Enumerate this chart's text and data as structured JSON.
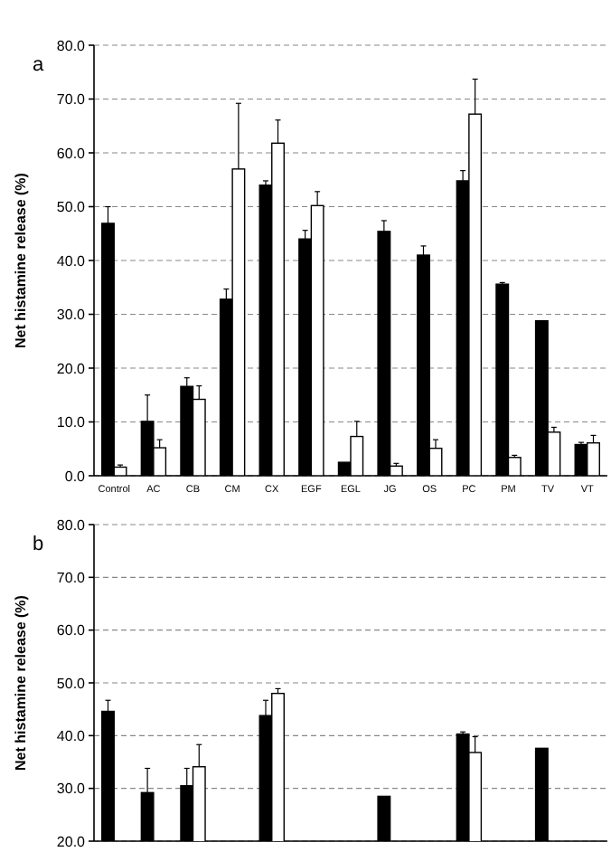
{
  "chart_data": [
    {
      "type": "bar",
      "title": "a",
      "ylabel": "Net histamine release (%)",
      "categories": [
        "Control",
        "AC",
        "CB",
        "CM",
        "CX",
        "EGF",
        "EGL",
        "JG",
        "OS",
        "PC",
        "PM",
        "TV",
        "VT"
      ],
      "series": [
        {
          "color": "#000000",
          "values": [
            46.9,
            10.1,
            16.6,
            32.8,
            54.0,
            44.0,
            2.5,
            45.4,
            41.0,
            54.8,
            35.6,
            28.8,
            5.8
          ],
          "errors": [
            [
              46.9,
              50.0
            ],
            [
              10.1,
              15.0
            ],
            [
              16.6,
              18.2
            ],
            [
              32.8,
              34.7
            ],
            [
              54.0,
              54.8
            ],
            [
              44.0,
              45.6
            ],
            null,
            [
              45.4,
              47.4
            ],
            [
              41.0,
              42.7
            ],
            [
              54.8,
              56.7
            ],
            [
              35.6,
              35.9
            ],
            null,
            [
              5.8,
              6.2
            ]
          ]
        },
        {
          "color": "#ffffff",
          "values": [
            1.6,
            5.2,
            14.2,
            57.0,
            61.8,
            50.2,
            7.3,
            1.8,
            5.1,
            67.2,
            3.4,
            8.1,
            6.1
          ],
          "errors": [
            [
              1.6,
              2.0
            ],
            [
              5.2,
              6.7
            ],
            [
              14.2,
              16.7
            ],
            [
              57.0,
              69.2
            ],
            [
              61.8,
              66.1
            ],
            [
              50.2,
              52.8
            ],
            [
              7.3,
              10.1
            ],
            [
              1.8,
              2.3
            ],
            [
              5.1,
              6.7
            ],
            [
              67.2,
              73.7
            ],
            [
              3.4,
              3.8
            ],
            [
              8.1,
              9.0
            ],
            [
              6.1,
              7.5
            ]
          ]
        }
      ],
      "ylim": [
        0,
        80
      ],
      "yticks": [
        {
          "value": 0,
          "label": "0.0"
        },
        {
          "value": 10,
          "label": "10.0"
        },
        {
          "value": 20,
          "label": "20.0"
        },
        {
          "value": 30,
          "label": "30.0"
        },
        {
          "value": 40,
          "label": "40.0"
        },
        {
          "value": 50,
          "label": "50.0"
        },
        {
          "value": 60,
          "label": "60.0"
        },
        {
          "value": 70,
          "label": "70.0"
        },
        {
          "value": 80,
          "label": "80.0"
        }
      ],
      "grid": "y"
    },
    {
      "type": "bar",
      "title": "b",
      "ylabel": "Net histamine release (%)",
      "categories": [
        null,
        null,
        null,
        null,
        null,
        null,
        null,
        null,
        null,
        null,
        null,
        null,
        null
      ],
      "series": [
        {
          "color": "#000000",
          "values": [
            44.6,
            29.2,
            30.5,
            null,
            43.8,
            null,
            null,
            28.5,
            null,
            40.3,
            null,
            37.6,
            null
          ],
          "errors": [
            [
              44.6,
              46.7
            ],
            [
              29.2,
              33.8
            ],
            [
              30.5,
              33.8
            ],
            null,
            [
              43.8,
              46.7
            ],
            null,
            null,
            null,
            null,
            [
              40.3,
              40.7
            ],
            null,
            null,
            null
          ]
        },
        {
          "color": "#ffffff",
          "values": [
            null,
            null,
            34.1,
            null,
            48.0,
            null,
            null,
            null,
            null,
            36.8,
            null,
            null,
            null
          ],
          "errors": [
            null,
            null,
            [
              34.1,
              38.3
            ],
            null,
            [
              48.0,
              48.9
            ],
            null,
            null,
            null,
            null,
            [
              36.8,
              39.8
            ],
            null,
            null,
            null
          ]
        }
      ],
      "ylim": [
        20,
        80
      ],
      "yticks": [
        {
          "value": 20,
          "label": "20.0"
        },
        {
          "value": 30,
          "label": "30.0"
        },
        {
          "value": 40,
          "label": "40.0"
        },
        {
          "value": 50,
          "label": "50.0"
        },
        {
          "value": 60,
          "label": "60.0"
        },
        {
          "value": 70,
          "label": "70.0"
        },
        {
          "value": 80,
          "label": "80.0"
        }
      ],
      "grid": "y",
      "tick_labels": "y"
    }
  ]
}
